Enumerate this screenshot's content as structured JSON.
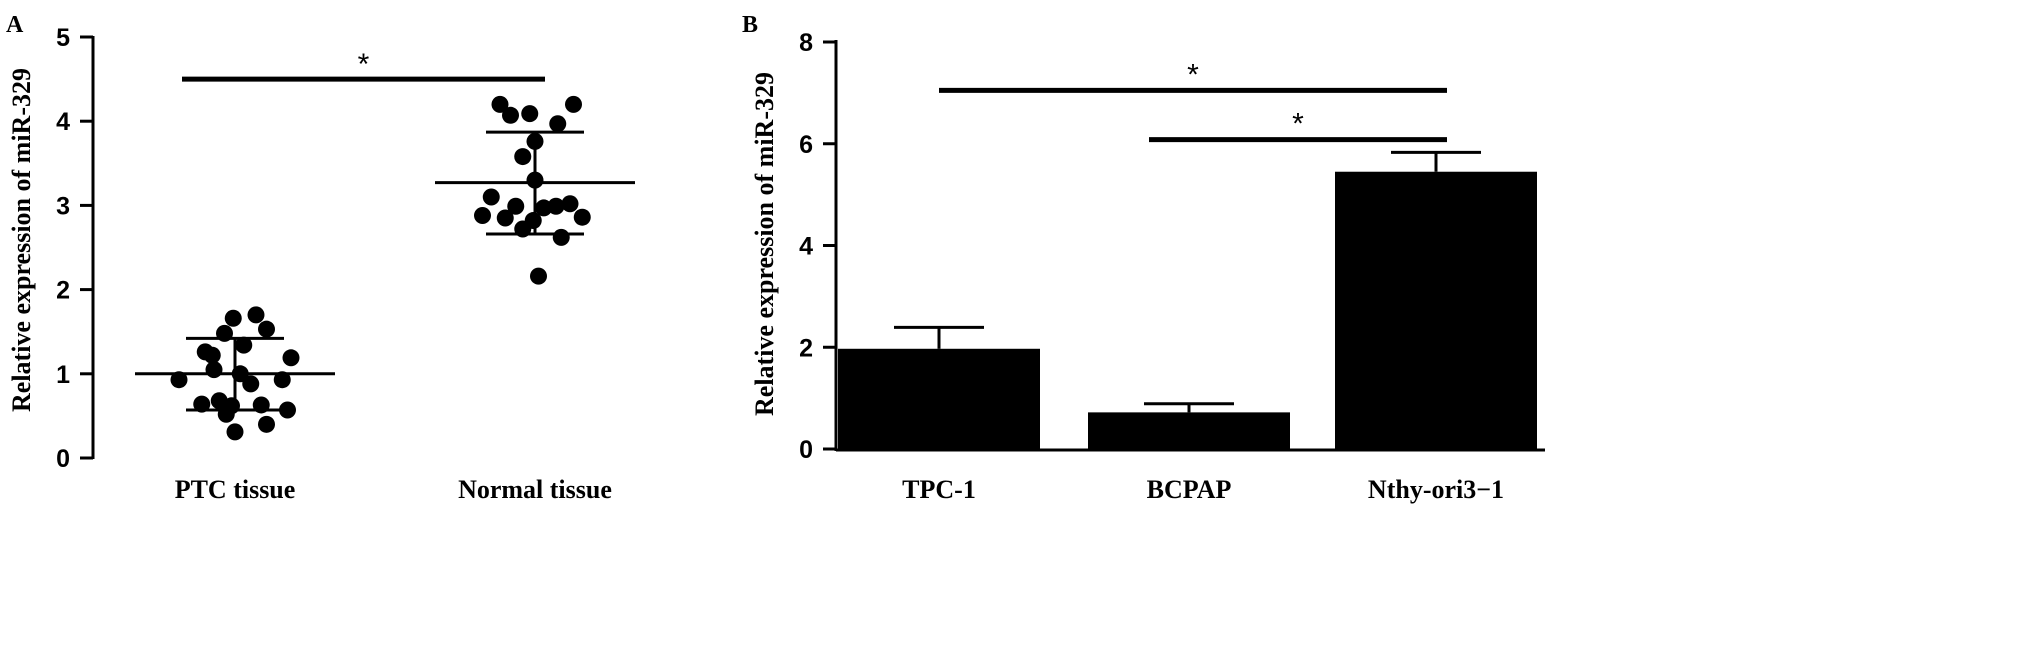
{
  "chart_data": [
    {
      "panel": "A",
      "type": "scatter",
      "ylabel": "Relative expression of miR-329",
      "ylim": [
        0,
        5
      ],
      "yticks": [
        "0",
        "1",
        "2",
        "3",
        "4",
        "5"
      ],
      "categories": [
        "PTC tissue",
        "Normal tissue"
      ],
      "groups": [
        {
          "category": "PTC tissue",
          "mean": 1.0,
          "sd_upper": 1.42,
          "sd_lower": 0.57,
          "points": [
            {
              "x": -0.32,
              "y": 0.93
            },
            {
              "x": -0.17,
              "y": 1.26
            },
            {
              "x": -0.12,
              "y": 1.05
            },
            {
              "x": -0.19,
              "y": 0.64
            },
            {
              "x": -0.09,
              "y": 0.68
            },
            {
              "x": -0.05,
              "y": 0.52
            },
            {
              "x": -0.06,
              "y": 1.48
            },
            {
              "x": -0.13,
              "y": 1.22
            },
            {
              "x": -0.01,
              "y": 1.66
            },
            {
              "x": 0.05,
              "y": 1.34
            },
            {
              "x": 0.0,
              "y": 0.31
            },
            {
              "x": 0.03,
              "y": 1.0
            },
            {
              "x": 0.09,
              "y": 0.88
            },
            {
              "x": 0.12,
              "y": 1.7
            },
            {
              "x": 0.15,
              "y": 0.63
            },
            {
              "x": 0.18,
              "y": 1.53
            },
            {
              "x": 0.18,
              "y": 0.4
            },
            {
              "x": 0.27,
              "y": 0.93
            },
            {
              "x": 0.32,
              "y": 1.19
            },
            {
              "x": 0.3,
              "y": 0.57
            },
            {
              "x": -0.02,
              "y": 0.62
            }
          ]
        },
        {
          "category": "Normal tissue",
          "mean": 3.27,
          "sd_upper": 3.87,
          "sd_lower": 2.66,
          "points": [
            {
              "x": -0.2,
              "y": 4.2
            },
            {
              "x": -0.14,
              "y": 4.07
            },
            {
              "x": -0.03,
              "y": 4.09
            },
            {
              "x": 0.13,
              "y": 3.97
            },
            {
              "x": 0.22,
              "y": 4.2
            },
            {
              "x": -0.25,
              "y": 3.1
            },
            {
              "x": -0.3,
              "y": 2.88
            },
            {
              "x": -0.17,
              "y": 2.85
            },
            {
              "x": -0.11,
              "y": 2.99
            },
            {
              "x": -0.07,
              "y": 3.58
            },
            {
              "x": 0.0,
              "y": 3.76
            },
            {
              "x": 0.0,
              "y": 3.3
            },
            {
              "x": 0.05,
              "y": 2.97
            },
            {
              "x": 0.12,
              "y": 2.99
            },
            {
              "x": 0.2,
              "y": 3.02
            },
            {
              "x": 0.27,
              "y": 2.86
            },
            {
              "x": -0.07,
              "y": 2.72
            },
            {
              "x": 0.15,
              "y": 2.62
            },
            {
              "x": 0.02,
              "y": 2.16
            },
            {
              "x": -0.01,
              "y": 2.82
            }
          ]
        }
      ],
      "significance": [
        {
          "from": "PTC tissue",
          "to": "Normal tissue",
          "y": 4.5,
          "label": "*"
        }
      ]
    },
    {
      "panel": "B",
      "type": "bar",
      "ylabel": "Relative expression of miR-329",
      "ylim": [
        0,
        8
      ],
      "yticks": [
        "0",
        "2",
        "4",
        "6",
        "8"
      ],
      "categories": [
        "TPC-1",
        "BCPAP",
        "Nthy-ori3−1"
      ],
      "values": [
        1.97,
        0.72,
        5.45
      ],
      "errors": [
        0.42,
        0.17,
        0.38
      ],
      "significance": [
        {
          "from": "TPC-1",
          "to": "Nthy-ori3−1",
          "y": 7.05,
          "label": "*"
        },
        {
          "from": "BCPAP",
          "to": "Nthy-ori3−1",
          "y": 6.08,
          "label": "*"
        }
      ]
    }
  ]
}
